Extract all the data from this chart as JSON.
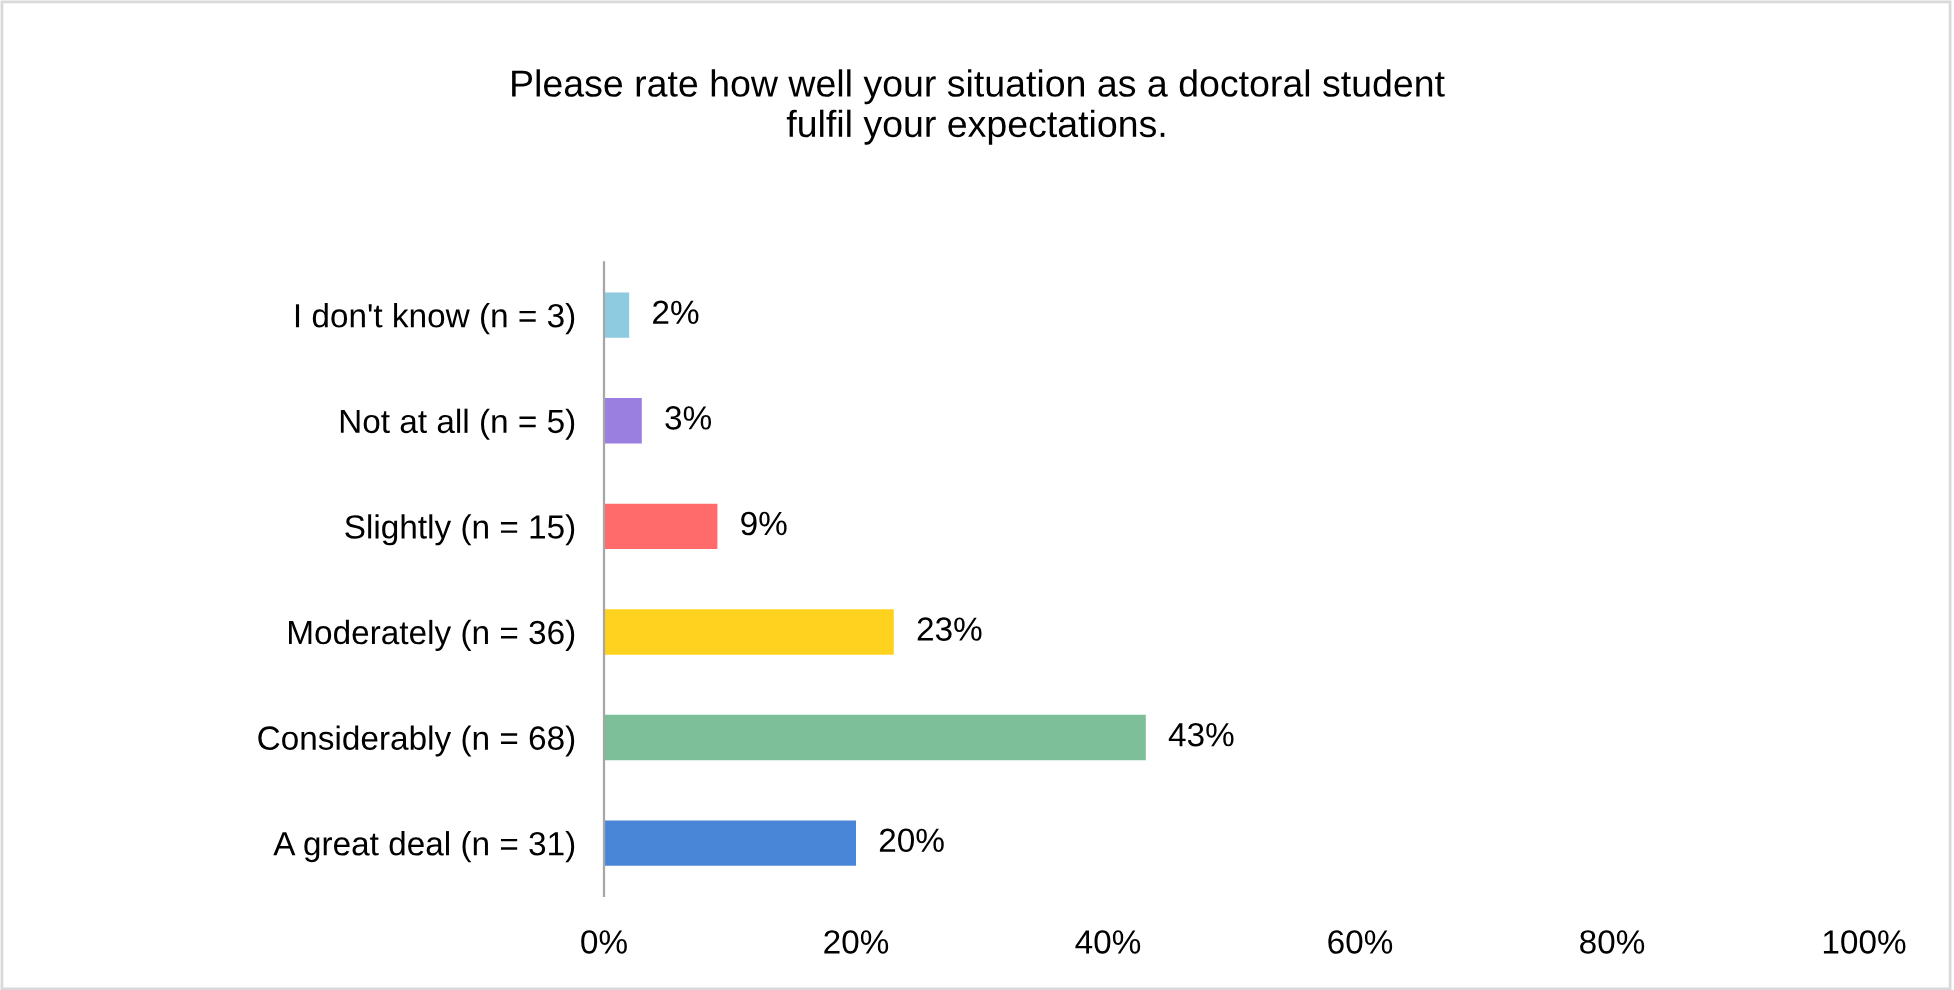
{
  "chart_data": {
    "type": "bar",
    "orientation": "horizontal",
    "title": "Please rate how well your situation as a doctoral student\nfulfil your expectations.",
    "categories": [
      "I don't know (n = 3)",
      "Not at all (n = 5)",
      "Slightly (n = 15)",
      "Moderately (n = 36)",
      "Considerably (n = 68)",
      "A great deal (n = 31)"
    ],
    "values": [
      2,
      3,
      9,
      23,
      43,
      20
    ],
    "colors": [
      "#8ecae0",
      "#9b7fe0",
      "#ff6b6b",
      "#ffd21f",
      "#7cbf98",
      "#4a86d8"
    ],
    "value_labels": [
      "2%",
      "3%",
      "9%",
      "23%",
      "43%",
      "20%"
    ],
    "xlim": [
      0,
      100
    ],
    "xticks": [
      {
        "value": 0,
        "label": "0%"
      },
      {
        "value": 20,
        "label": "20%"
      },
      {
        "value": 40,
        "label": "40%"
      },
      {
        "value": 60,
        "label": "60%"
      },
      {
        "value": 80,
        "label": "80%"
      },
      {
        "value": 100,
        "label": "100%"
      }
    ],
    "grid": false,
    "legend": false
  }
}
